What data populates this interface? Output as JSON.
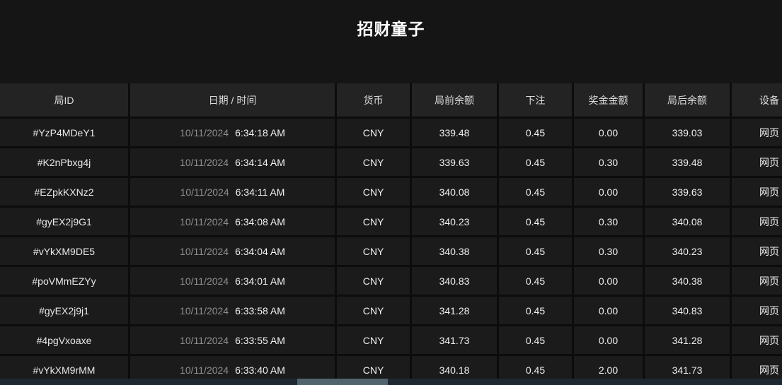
{
  "title": "招财童子",
  "table": {
    "columns": [
      {
        "key": "round_id",
        "label": "局ID"
      },
      {
        "key": "datetime",
        "label": "日期 / 时间"
      },
      {
        "key": "currency",
        "label": "货币"
      },
      {
        "key": "balance_before",
        "label": "局前余额"
      },
      {
        "key": "bet",
        "label": "下注"
      },
      {
        "key": "prize",
        "label": "奖金金额"
      },
      {
        "key": "balance_after",
        "label": "局后余额"
      },
      {
        "key": "device",
        "label": "设备"
      }
    ],
    "rows": [
      {
        "round_id": "#YzP4MDeY1",
        "date": "10/11/2024",
        "time": "6:34:18 AM",
        "currency": "CNY",
        "balance_before": "339.48",
        "bet": "0.45",
        "prize": "0.00",
        "balance_after": "339.03",
        "device": "网页"
      },
      {
        "round_id": "#K2nPbxg4j",
        "date": "10/11/2024",
        "time": "6:34:14 AM",
        "currency": "CNY",
        "balance_before": "339.63",
        "bet": "0.45",
        "prize": "0.30",
        "balance_after": "339.48",
        "device": "网页"
      },
      {
        "round_id": "#EZpkKXNz2",
        "date": "10/11/2024",
        "time": "6:34:11 AM",
        "currency": "CNY",
        "balance_before": "340.08",
        "bet": "0.45",
        "prize": "0.00",
        "balance_after": "339.63",
        "device": "网页"
      },
      {
        "round_id": "#gyEX2j9G1",
        "date": "10/11/2024",
        "time": "6:34:08 AM",
        "currency": "CNY",
        "balance_before": "340.23",
        "bet": "0.45",
        "prize": "0.30",
        "balance_after": "340.08",
        "device": "网页"
      },
      {
        "round_id": "#vYkXM9DE5",
        "date": "10/11/2024",
        "time": "6:34:04 AM",
        "currency": "CNY",
        "balance_before": "340.38",
        "bet": "0.45",
        "prize": "0.30",
        "balance_after": "340.23",
        "device": "网页"
      },
      {
        "round_id": "#poVMmEZYy",
        "date": "10/11/2024",
        "time": "6:34:01 AM",
        "currency": "CNY",
        "balance_before": "340.83",
        "bet": "0.45",
        "prize": "0.00",
        "balance_after": "340.38",
        "device": "网页"
      },
      {
        "round_id": "#gyEX2j9j1",
        "date": "10/11/2024",
        "time": "6:33:58 AM",
        "currency": "CNY",
        "balance_before": "341.28",
        "bet": "0.45",
        "prize": "0.00",
        "balance_after": "340.83",
        "device": "网页"
      },
      {
        "round_id": "#4pgVxoaxe",
        "date": "10/11/2024",
        "time": "6:33:55 AM",
        "currency": "CNY",
        "balance_before": "341.73",
        "bet": "0.45",
        "prize": "0.00",
        "balance_after": "341.28",
        "device": "网页"
      },
      {
        "round_id": "#vYkXM9rMM",
        "date": "10/11/2024",
        "time": "6:33:40 AM",
        "currency": "CNY",
        "balance_before": "340.18",
        "bet": "0.45",
        "prize": "2.00",
        "balance_after": "341.73",
        "device": "网页"
      }
    ]
  },
  "colors": {
    "page_background": "#151515",
    "header_cell": "#232323",
    "data_cell": "#1b1b1b",
    "separator": "#0c0c0c",
    "date_muted": "#8f8f8f",
    "text": "#f0f0f0",
    "scrollbar_track": "#1d2830",
    "scrollbar_thumb": "#51646e"
  }
}
